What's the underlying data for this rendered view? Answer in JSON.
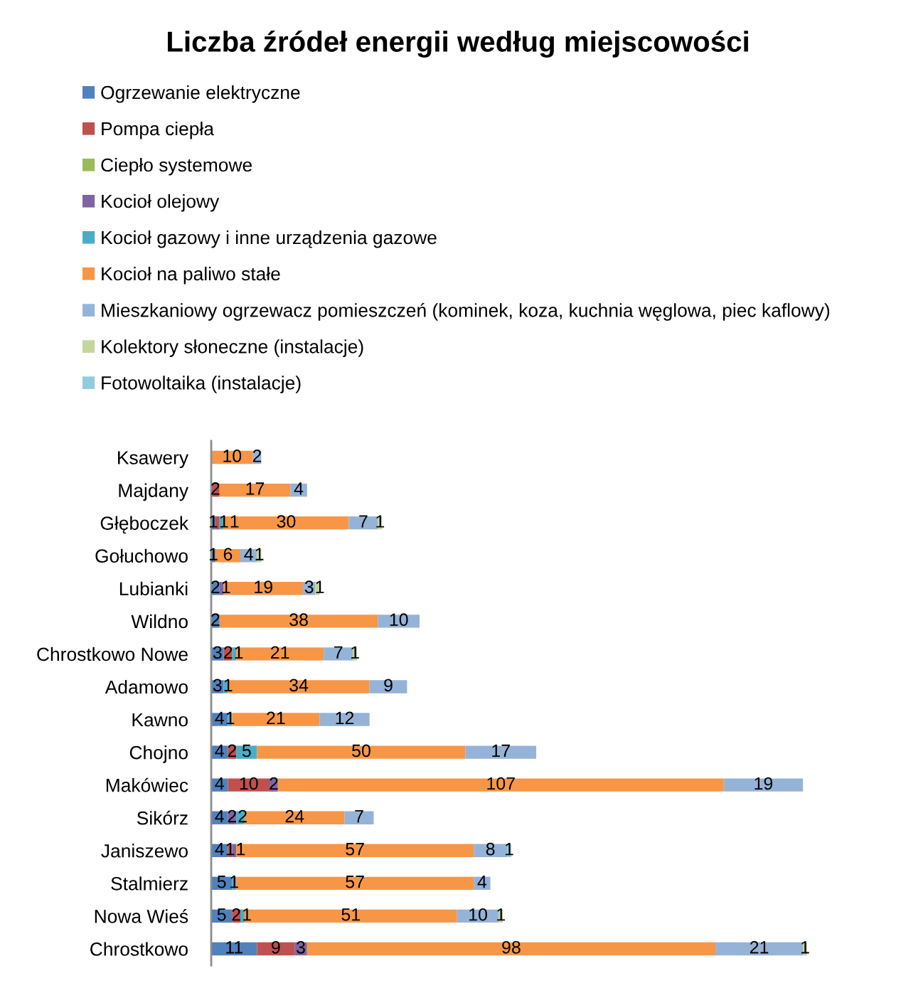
{
  "chart_data": {
    "type": "bar",
    "orientation": "horizontal",
    "stacked": true,
    "data_labels": true,
    "legend": "top",
    "tick_labels": "y",
    "title": "Liczba źródeł energii według miejscowości",
    "categories": [
      "Ksawery",
      "Majdany",
      "Głęboczek",
      "Gołuchowo",
      "Lubianki",
      "Wildno",
      "Chrostkowo Nowe",
      "Adamowo",
      "Kawno",
      "Chojno",
      "Makówiec",
      "Sikórz",
      "Janiszewo",
      "Stalmierz",
      "Nowa Wieś",
      "Chrostkowo"
    ],
    "series": [
      {
        "name": "Ogrzewanie elektryczne",
        "color": "#4f81bd",
        "values": [
          null,
          null,
          1,
          1,
          2,
          2,
          3,
          3,
          4,
          4,
          4,
          4,
          4,
          5,
          5,
          11
        ]
      },
      {
        "name": "Pompa ciepła",
        "color": "#c0504d",
        "values": [
          null,
          2,
          1,
          null,
          null,
          null,
          2,
          null,
          null,
          2,
          10,
          null,
          1,
          null,
          2,
          9
        ]
      },
      {
        "name": "Ciepło systemowe",
        "color": "#9bbb59",
        "values": [
          null,
          null,
          null,
          null,
          null,
          null,
          null,
          null,
          null,
          null,
          null,
          null,
          null,
          null,
          null,
          null
        ]
      },
      {
        "name": "Kocioł olejowy",
        "color": "#8064a2",
        "values": [
          null,
          null,
          null,
          null,
          1,
          null,
          null,
          null,
          null,
          null,
          2,
          2,
          1,
          null,
          null,
          3
        ]
      },
      {
        "name": "Kocioł gazowy i inne urządzenia gazowe",
        "color": "#4bacc6",
        "values": [
          null,
          null,
          1,
          null,
          null,
          null,
          1,
          1,
          1,
          5,
          null,
          2,
          null,
          1,
          1,
          null
        ]
      },
      {
        "name": "Kocioł na paliwo stałe",
        "color": "#f79646",
        "values": [
          10,
          17,
          30,
          6,
          19,
          38,
          21,
          34,
          21,
          50,
          107,
          24,
          57,
          57,
          51,
          98
        ]
      },
      {
        "name": "Mieszkaniowy ogrzewacz pomieszczeń (kominek, koza, kuchnia węglowa, piec kaflowy)",
        "color": "#95b3d7",
        "values": [
          2,
          4,
          7,
          4,
          3,
          10,
          7,
          9,
          12,
          17,
          19,
          7,
          8,
          4,
          10,
          21
        ]
      },
      {
        "name": "Kolektory słoneczne (instalacje)",
        "color": "#c3d69b",
        "values": [
          null,
          null,
          1,
          1,
          1,
          null,
          1,
          null,
          null,
          null,
          null,
          null,
          null,
          null,
          1,
          1
        ]
      },
      {
        "name": "Fotowoltaika (instalacje)",
        "color": "#93cddd",
        "values": [
          null,
          null,
          null,
          null,
          null,
          null,
          null,
          null,
          null,
          null,
          null,
          null,
          1,
          null,
          null,
          null
        ]
      }
    ]
  }
}
